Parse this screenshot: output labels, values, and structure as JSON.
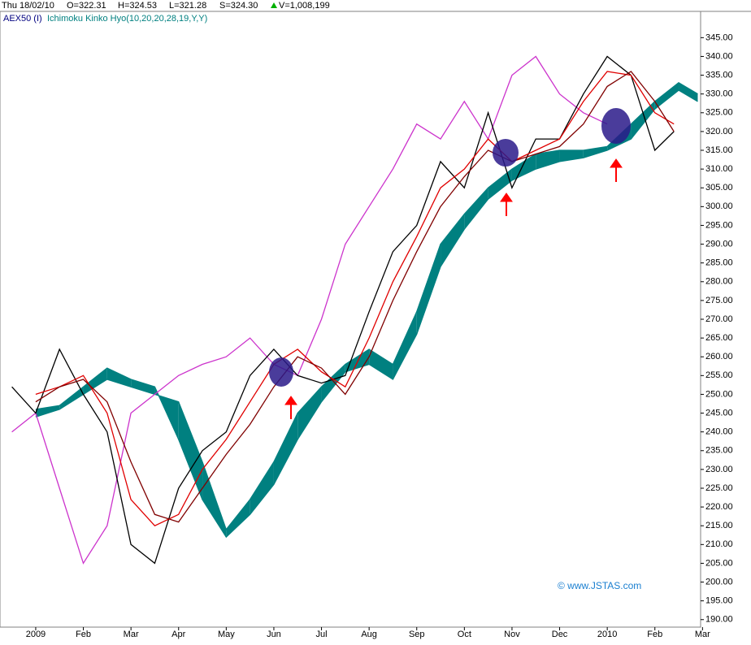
{
  "header": {
    "date": "Thu 18/02/10",
    "open": "O=322.31",
    "high": "H=324.53",
    "low": "L=321.28",
    "close": "S=324.30",
    "volume": "V=1,008,199"
  },
  "chart_data": {
    "type": "line",
    "legend": {
      "instrument": "AEX50 (I)",
      "indicator": "Ichimoku Kinko Hyo(10,20,20,28,19,Y,Y)"
    },
    "annotation": "© www.JSTAS.com",
    "xlim": [
      -0.75,
      13.96
    ],
    "xticks": [
      {
        "value": 0,
        "label": "2009"
      },
      {
        "value": 1,
        "label": "Feb"
      },
      {
        "value": 2,
        "label": "Mar"
      },
      {
        "value": 3,
        "label": "Apr"
      },
      {
        "value": 4,
        "label": "May"
      },
      {
        "value": 5,
        "label": "Jun"
      },
      {
        "value": 6,
        "label": "Jul"
      },
      {
        "value": 7,
        "label": "Aug"
      },
      {
        "value": 8,
        "label": "Sep"
      },
      {
        "value": 9,
        "label": "Oct"
      },
      {
        "value": 10,
        "label": "Nov"
      },
      {
        "value": 11,
        "label": "Dec"
      },
      {
        "value": 12,
        "label": "2010"
      },
      {
        "value": 13,
        "label": "Feb"
      },
      {
        "value": 14,
        "label": "Mar"
      }
    ],
    "ylim": [
      188,
      352
    ],
    "yticks": [
      {
        "value": 190,
        "label": "190.00"
      },
      {
        "value": 195,
        "label": "195.00"
      },
      {
        "value": 200,
        "label": "200.00"
      },
      {
        "value": 205,
        "label": "205.00"
      },
      {
        "value": 210,
        "label": "210.00"
      },
      {
        "value": 215,
        "label": "215.00"
      },
      {
        "value": 220,
        "label": "220.00"
      },
      {
        "value": 225,
        "label": "225.00"
      },
      {
        "value": 230,
        "label": "230.00"
      },
      {
        "value": 235,
        "label": "235.00"
      },
      {
        "value": 240,
        "label": "240.00"
      },
      {
        "value": 245,
        "label": "245.00"
      },
      {
        "value": 250,
        "label": "250.00"
      },
      {
        "value": 255,
        "label": "255.00"
      },
      {
        "value": 260,
        "label": "260.00"
      },
      {
        "value": 265,
        "label": "265.00"
      },
      {
        "value": 270,
        "label": "270.00"
      },
      {
        "value": 275,
        "label": "275.00"
      },
      {
        "value": 280,
        "label": "280.00"
      },
      {
        "value": 285,
        "label": "285.00"
      },
      {
        "value": 290,
        "label": "290.00"
      },
      {
        "value": 295,
        "label": "295.00"
      },
      {
        "value": 300,
        "label": "300.00"
      },
      {
        "value": 305,
        "label": "305.00"
      },
      {
        "value": 310,
        "label": "310.00"
      },
      {
        "value": 315,
        "label": "315.00"
      },
      {
        "value": 320,
        "label": "320.00"
      },
      {
        "value": 325,
        "label": "325.00"
      },
      {
        "value": 330,
        "label": "330.00"
      },
      {
        "value": 335,
        "label": "335.00"
      },
      {
        "value": 340,
        "label": "340.00"
      },
      {
        "value": 345,
        "label": "345.00"
      }
    ],
    "series": [
      {
        "type": "cloud",
        "color": "#008080",
        "x": [
          0,
          0.5,
          1,
          1.5,
          2,
          2.5,
          3,
          3.5,
          4,
          4.5,
          5,
          5.5,
          6,
          6.5,
          7,
          7.5,
          8,
          8.5,
          9,
          9.5,
          10,
          10.5,
          11,
          11.5,
          12,
          12.5,
          13,
          13.5,
          13.9
        ],
        "values": [
          244,
          246,
          250,
          254,
          252,
          250,
          248,
          232,
          214,
          222,
          232,
          245,
          252,
          258,
          262,
          258,
          272,
          290,
          298,
          305,
          310,
          314,
          315,
          315,
          316,
          322,
          328,
          333,
          330
        ]
      },
      {
        "type": "cloud",
        "color": "#008080",
        "x": [
          0,
          0.5,
          1,
          1.5,
          2,
          2.5,
          3,
          3.5,
          4,
          4.5,
          5,
          5.5,
          6,
          6.5,
          7,
          7.5,
          8,
          8.5,
          9,
          9.5,
          10,
          10.5,
          11,
          11.5,
          12,
          12.5,
          13,
          13.5,
          13.9
        ],
        "values": [
          246,
          247,
          252,
          257,
          254,
          252,
          238,
          222,
          212,
          218,
          226,
          238,
          248,
          256,
          258,
          254,
          266,
          284,
          294,
          302,
          307,
          310,
          312,
          313,
          315,
          318,
          326,
          331,
          328
        ]
      },
      {
        "type": "line",
        "color": "#cc33cc",
        "x": [
          -0.5,
          0,
          0.5,
          1,
          1.5,
          2,
          2.5,
          3,
          3.5,
          4,
          4.5,
          5,
          5.5,
          6,
          6.5,
          7,
          7.5,
          8,
          8.5,
          9,
          9.5,
          10,
          10.5,
          11,
          11.5,
          12
        ],
        "values": [
          240,
          245,
          225,
          205,
          215,
          245,
          250,
          255,
          258,
          260,
          265,
          258,
          255,
          270,
          290,
          300,
          310,
          322,
          318,
          328,
          318,
          335,
          340,
          330,
          325,
          322
        ]
      },
      {
        "type": "line",
        "color": "#000000",
        "x": [
          -0.5,
          0,
          0.5,
          1,
          1.5,
          2,
          2.5,
          3,
          3.5,
          4,
          4.5,
          5,
          5.5,
          6,
          6.5,
          7,
          7.5,
          8,
          8.5,
          9,
          9.5,
          10,
          10.5,
          11,
          11.5,
          12,
          12.5,
          13,
          13.4
        ],
        "values": [
          252,
          245,
          262,
          250,
          240,
          210,
          205,
          225,
          235,
          240,
          255,
          262,
          255,
          253,
          255,
          272,
          288,
          295,
          312,
          305,
          325,
          305,
          318,
          318,
          330,
          340,
          335,
          315,
          320
        ]
      },
      {
        "type": "line",
        "color": "#e00000",
        "x": [
          0,
          0.5,
          1,
          1.5,
          2,
          2.5,
          3,
          3.5,
          4,
          4.5,
          5,
          5.5,
          6,
          6.5,
          7,
          7.5,
          8,
          8.5,
          9,
          9.5,
          10,
          10.5,
          11,
          11.5,
          12,
          12.5,
          13,
          13.4
        ],
        "values": [
          250,
          252,
          255,
          245,
          222,
          215,
          218,
          230,
          238,
          248,
          258,
          262,
          256,
          252,
          265,
          280,
          292,
          305,
          310,
          318,
          312,
          315,
          318,
          328,
          336,
          335,
          325,
          322
        ]
      },
      {
        "type": "line",
        "color": "#800000",
        "x": [
          0,
          0.5,
          1,
          1.5,
          2,
          2.5,
          3,
          3.5,
          4,
          4.5,
          5,
          5.5,
          6,
          6.5,
          7,
          7.5,
          8,
          8.5,
          9,
          9.5,
          10,
          10.5,
          11,
          11.5,
          12,
          12.5,
          13,
          13.4
        ],
        "values": [
          248,
          252,
          254,
          248,
          232,
          218,
          216,
          225,
          234,
          242,
          252,
          260,
          257,
          250,
          260,
          275,
          288,
          300,
          308,
          315,
          312,
          314,
          316,
          322,
          332,
          336,
          328,
          320
        ]
      }
    ]
  }
}
